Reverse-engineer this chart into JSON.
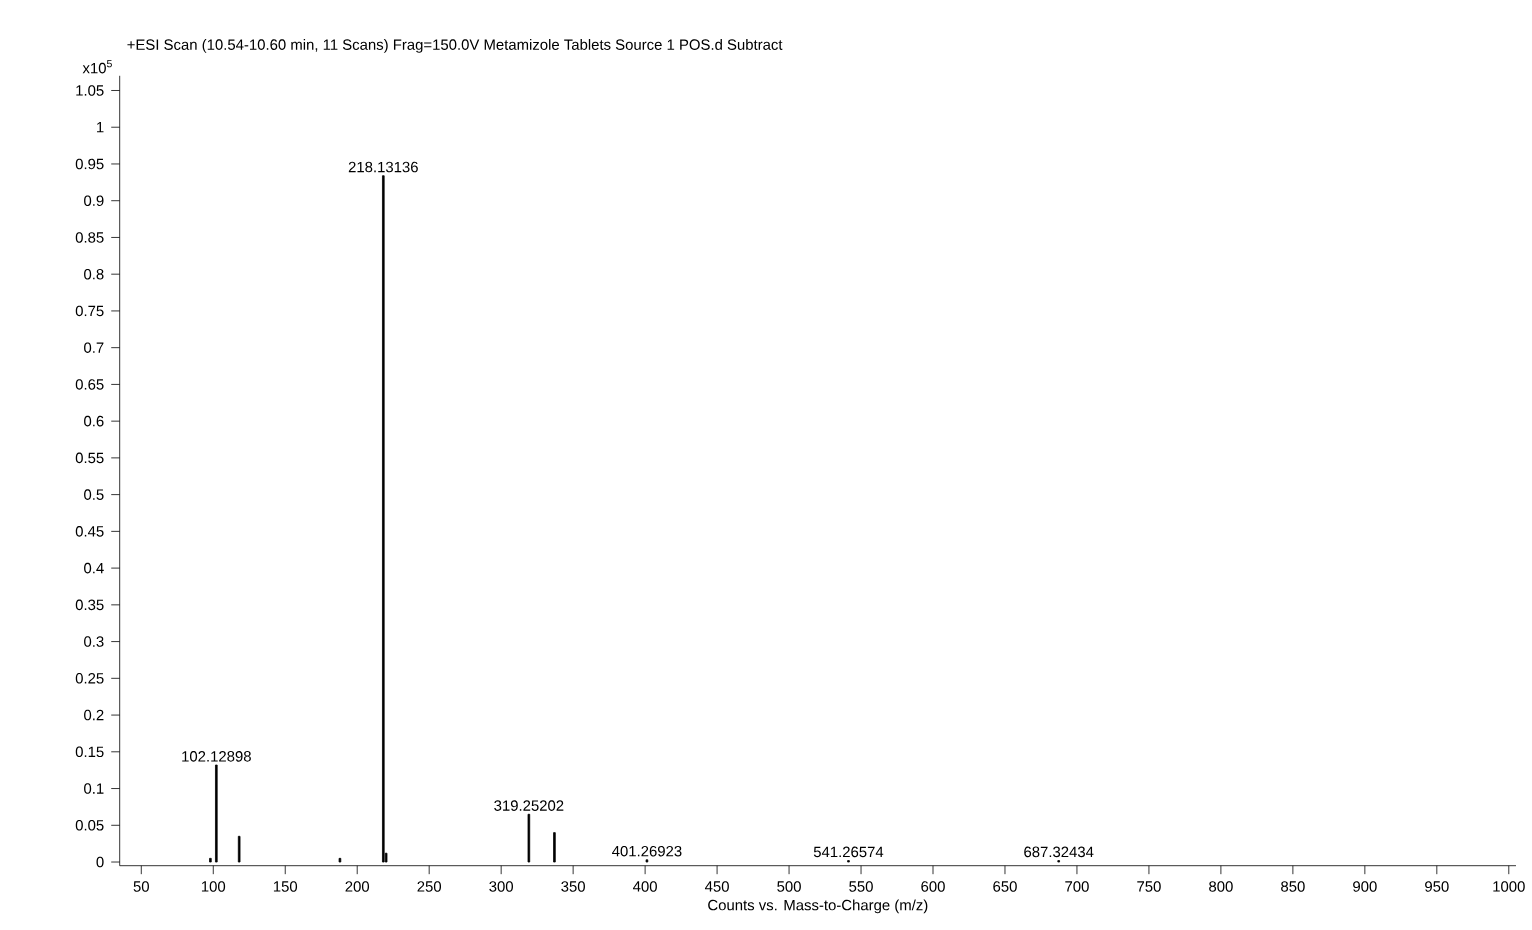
{
  "chart_data": {
    "type": "bar",
    "title": "+ESI Scan (10.54-10.60 min, 11 Scans) Frag=150.0V Metamizole Tablets Source 1 POS.d  Subtract",
    "ylabel": "x10$^{5}$",
    "xlabel": "Counts vs. Mass-to-Charge (m/z)",
    "color": "#000000",
    "x": [
      98.0,
      102.13,
      118.0,
      188.0,
      218.13,
      220.1,
      319.25,
      337.0,
      401.27,
      541.27,
      687.32
    ],
    "values": [
      0.005,
      0.132,
      0.035,
      0.005,
      0.934,
      0.012,
      0.065,
      0.04,
      0.003,
      0.002,
      0.002
    ],
    "xlim": [
      35,
      1005
    ],
    "ylim": [
      -0.005,
      1.07
    ],
    "xticks": [
      50,
      100,
      150,
      200,
      250,
      300,
      350,
      400,
      450,
      500,
      550,
      600,
      650,
      700,
      750,
      800,
      850,
      900,
      950,
      1000
    ],
    "yticks": [
      0,
      {
        "value": 0.05,
        "label": "0.05"
      },
      {
        "value": 0.1,
        "label": "0.1"
      },
      {
        "value": 0.15,
        "label": "0.15"
      },
      {
        "value": 0.2,
        "label": "0.2"
      },
      {
        "value": 0.25,
        "label": "0.25"
      },
      {
        "value": 0.3,
        "label": "0.3"
      },
      {
        "value": 0.35,
        "label": "0.35"
      },
      {
        "value": 0.4,
        "label": "0.4"
      },
      {
        "value": 0.45,
        "label": "0.45"
      },
      {
        "value": 0.5,
        "label": "0.5"
      },
      {
        "value": 0.55,
        "label": "0.55"
      },
      {
        "value": 0.6,
        "label": "0.6"
      },
      {
        "value": 0.65,
        "label": "0.65"
      },
      {
        "value": 0.7,
        "label": "0.7"
      },
      {
        "value": 0.75,
        "label": "0.75"
      },
      {
        "value": 0.8,
        "label": "0.8"
      },
      {
        "value": 0.85,
        "label": "0.85"
      },
      {
        "value": 0.9,
        "label": "0.9"
      },
      {
        "value": 0.95,
        "label": "0.95"
      },
      1,
      {
        "value": 1.05,
        "label": "1.05"
      }
    ],
    "grid": false,
    "annotations": [
      {
        "text": "102.12898",
        "x": 102.13,
        "y": 0.132
      },
      {
        "text": "218.13136",
        "x": 218.13,
        "y": 0.934
      },
      {
        "text": "319.25202",
        "x": 319.25,
        "y": 0.065
      },
      {
        "text": "401.26923",
        "x": 401.27,
        "y": 0.003
      },
      {
        "text": "541.26574",
        "x": 541.27,
        "y": 0.002
      },
      {
        "text": "687.32434",
        "x": 687.32,
        "y": 0.002
      }
    ]
  }
}
